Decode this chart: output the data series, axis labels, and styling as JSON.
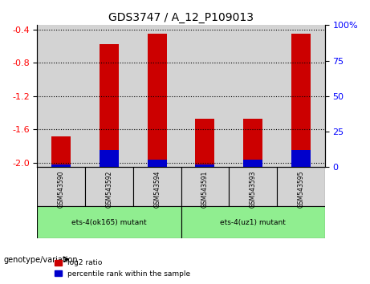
{
  "title": "GDS3747 / A_12_P109013",
  "samples": [
    "GSM543590",
    "GSM543592",
    "GSM543594",
    "GSM543591",
    "GSM543593",
    "GSM543595"
  ],
  "log2_ratio": [
    -1.68,
    -0.58,
    -0.45,
    -1.47,
    -1.47,
    -0.45
  ],
  "percentile_rank": [
    2,
    12,
    5,
    2,
    5,
    12
  ],
  "ylim_left": [
    -2.05,
    -0.35
  ],
  "ylim_right": [
    0,
    100
  ],
  "left_ticks": [
    -2.0,
    -1.6,
    -1.2,
    -0.8,
    -0.4
  ],
  "right_ticks": [
    0,
    25,
    50,
    75,
    100
  ],
  "groups": [
    {
      "label": "ets-4(ok165) mutant",
      "indices": [
        0,
        1,
        2
      ],
      "color": "#90EE90"
    },
    {
      "label": "ets-4(uz1) mutant",
      "indices": [
        3,
        4,
        5
      ],
      "color": "#90EE90"
    }
  ],
  "group_label": "genotype/variation",
  "bar_color_red": "#CC0000",
  "bar_color_blue": "#0000CC",
  "legend_red": "log2 ratio",
  "legend_blue": "percentile rank within the sample",
  "bg_color_samples": "#D3D3D3",
  "grid_color": "#000000",
  "bar_width": 0.4
}
